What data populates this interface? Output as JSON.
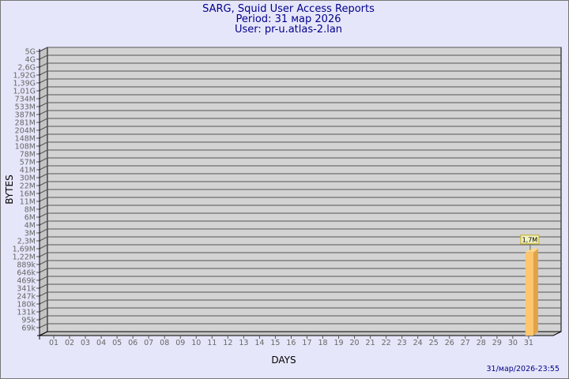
{
  "chart_data": {
    "type": "bar",
    "title": "SARG, Squid User Access Reports",
    "subtitle": [
      "Period: 31 мар 2026",
      "User: pr-u.atlas-2.lan"
    ],
    "xlabel": "DAYS",
    "ylabel": "BYTES",
    "yscale": "log",
    "ytick_labels": [
      "5G",
      "4G",
      "2,6G",
      "1,92G",
      "1,39G",
      "1,01G",
      "734M",
      "533M",
      "387M",
      "281M",
      "204M",
      "148M",
      "108M",
      "78M",
      "57M",
      "41M",
      "30M",
      "22M",
      "16M",
      "11M",
      "8M",
      "6M",
      "4M",
      "3M",
      "2,3M",
      "1,69M",
      "1,22M",
      "889k",
      "646k",
      "469k",
      "341k",
      "247k",
      "180k",
      "131k",
      "95k",
      "69k"
    ],
    "categories": [
      "01",
      "02",
      "03",
      "04",
      "05",
      "06",
      "07",
      "08",
      "09",
      "10",
      "11",
      "12",
      "13",
      "14",
      "15",
      "16",
      "17",
      "18",
      "19",
      "20",
      "21",
      "22",
      "23",
      "24",
      "25",
      "26",
      "27",
      "28",
      "29",
      "30",
      "31"
    ],
    "values": [
      null,
      null,
      null,
      null,
      null,
      null,
      null,
      null,
      null,
      null,
      null,
      null,
      null,
      null,
      null,
      null,
      null,
      null,
      null,
      null,
      null,
      null,
      null,
      null,
      null,
      null,
      null,
      null,
      null,
      null,
      1700000
    ],
    "data_labels": {
      "31": "1,7M"
    },
    "grid": true,
    "colors": {
      "bar_front": "#ffc66e",
      "bar_side": "#e0a448",
      "bar_top": "#ffd88a",
      "wall": "#d3d3d3",
      "background": "#e6e6fa",
      "title": "#00008b"
    }
  },
  "footer": {
    "timestamp": "31/мар/2026-23:55"
  }
}
